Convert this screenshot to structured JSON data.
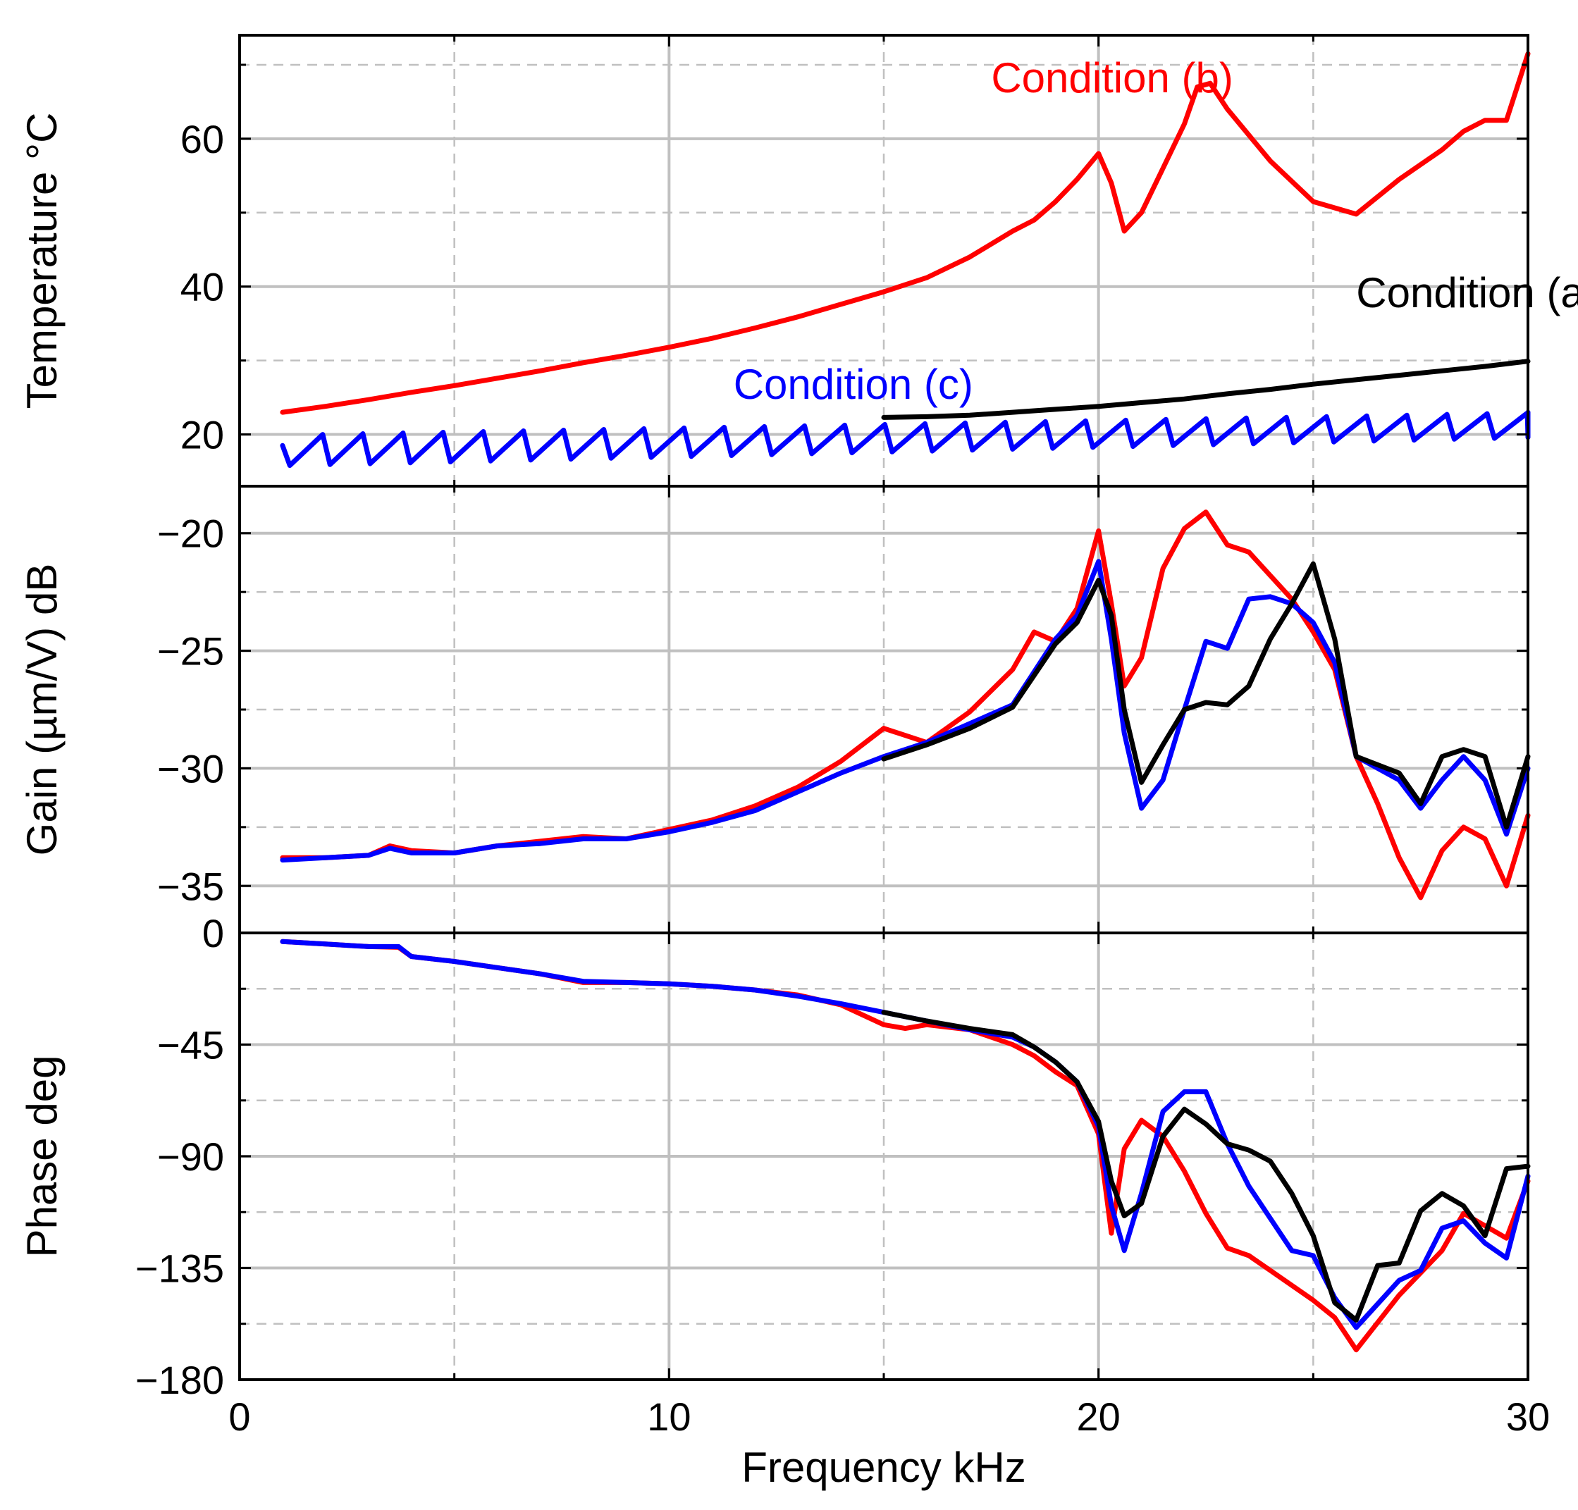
{
  "chart_data": {
    "type": "line",
    "xlabel": "Frequency kHz",
    "xlim": [
      0,
      30
    ],
    "x_ticks": [
      "0",
      "10",
      "20",
      "30"
    ],
    "colors": {
      "condition_a": "#000000",
      "condition_b": "#ff0000",
      "condition_c": "#0000ff"
    },
    "panels": [
      {
        "id": "temperature",
        "ylabel": "Temperature °C",
        "ylim": [
          13,
          74
        ],
        "y_ticks": [
          20,
          40,
          60
        ],
        "y_tick_labels": [
          "20",
          "40",
          "60"
        ],
        "y_minor": [
          30,
          50,
          70
        ],
        "annotations": [
          {
            "text": "Condition (b)",
            "x": 17.5,
            "y": 66.3,
            "series": "condition_b"
          },
          {
            "text": "Condition (a)",
            "x": 26.0,
            "y": 37.2,
            "series": "condition_a"
          },
          {
            "text": "Condition (c)",
            "x": 11.5,
            "y": 24.8,
            "series": "condition_c"
          }
        ],
        "series": [
          {
            "name": "Condition (b)",
            "key": "condition_b",
            "x": [
              1,
              2,
              3,
              4,
              5,
              6,
              7,
              8,
              9,
              10,
              11,
              12,
              13,
              14,
              15,
              16,
              17,
              18,
              18.5,
              19,
              19.5,
              20,
              20.3,
              20.6,
              21,
              21.5,
              22,
              22.3,
              22.6,
              23,
              24,
              25,
              26,
              27,
              28,
              28.5,
              29,
              29.5,
              30
            ],
            "values": [
              23,
              23.8,
              24.7,
              25.7,
              26.6,
              27.6,
              28.6,
              29.7,
              30.7,
              31.8,
              33,
              34.4,
              35.9,
              37.6,
              39.3,
              41.2,
              44,
              47.5,
              49,
              51.5,
              54.5,
              58,
              54,
              47.5,
              50,
              56,
              62,
              67,
              67.5,
              64,
              57,
              51.5,
              49.8,
              54.5,
              58.5,
              61,
              62.5,
              62.5,
              71.5
            ]
          },
          {
            "name": "Condition (a)",
            "key": "condition_a",
            "x": [
              15,
              16,
              17,
              18,
              19,
              20,
              21,
              22,
              23,
              24,
              25,
              26,
              27,
              28,
              29,
              30
            ],
            "values": [
              22.3,
              22.4,
              22.6,
              23,
              23.4,
              23.8,
              24.3,
              24.8,
              25.5,
              26.1,
              26.8,
              27.4,
              28,
              28.6,
              29.2,
              29.9
            ]
          },
          {
            "name": "Condition (c)",
            "key": "condition_c",
            "sawtooth": {
              "start": 1.0,
              "end": 30.0,
              "period": 0.935,
              "low_start": 15.8,
              "low_end": 19.6,
              "high_start": 20.0,
              "high_end": 23.0
            }
          }
        ]
      },
      {
        "id": "gain",
        "ylabel": "Gain (µm/V) dB",
        "ylim": [
          -37,
          -18
        ],
        "y_ticks": [
          -35,
          -30,
          -25,
          -20
        ],
        "y_tick_labels": [
          "−35",
          "−30",
          "−25",
          "−20"
        ],
        "y_minor": [
          -32.5,
          -27.5,
          -22.5
        ],
        "series": [
          {
            "name": "Condition (b)",
            "key": "condition_b",
            "x": [
              1,
              2,
              3,
              3.5,
              4,
              5,
              6,
              7,
              8,
              9,
              10,
              11,
              12,
              13,
              14,
              15,
              15.5,
              16,
              17,
              18,
              18.5,
              19,
              19.5,
              20,
              20.3,
              20.6,
              21,
              21.5,
              22,
              22.5,
              23,
              23.5,
              24,
              24.5,
              25,
              25.5,
              26,
              26.5,
              27,
              27.5,
              28,
              28.5,
              29,
              29.5,
              30
            ],
            "values": [
              -33.8,
              -33.8,
              -33.7,
              -33.3,
              -33.5,
              -33.6,
              -33.3,
              -33.1,
              -32.9,
              -33.0,
              -32.6,
              -32.2,
              -31.6,
              -30.8,
              -29.7,
              -28.3,
              -28.6,
              -28.9,
              -27.6,
              -25.8,
              -24.2,
              -24.6,
              -23.2,
              -19.9,
              -23,
              -26.5,
              -25.3,
              -21.5,
              -19.8,
              -19.1,
              -20.5,
              -20.8,
              -21.8,
              -22.8,
              -24.2,
              -25.8,
              -29.5,
              -31.5,
              -33.8,
              -35.5,
              -33.5,
              -32.5,
              -33.0,
              -35.0,
              -32.0
            ]
          },
          {
            "name": "Condition (c)",
            "key": "condition_c",
            "x": [
              1,
              2,
              3,
              3.5,
              4,
              5,
              6,
              7,
              8,
              9,
              10,
              11,
              12,
              13,
              14,
              15,
              16,
              17,
              18,
              19,
              19.5,
              20,
              20.3,
              20.6,
              21,
              21.5,
              22,
              22.5,
              23,
              23.5,
              24,
              24.5,
              25,
              25.5,
              26,
              27,
              27.5,
              28,
              28.5,
              29,
              29.5,
              30
            ],
            "values": [
              -33.9,
              -33.8,
              -33.7,
              -33.4,
              -33.6,
              -33.6,
              -33.3,
              -33.2,
              -33.0,
              -33.0,
              -32.7,
              -32.3,
              -31.8,
              -31.0,
              -30.2,
              -29.5,
              -28.9,
              -28.1,
              -27.3,
              -24.5,
              -23.5,
              -21.2,
              -24.5,
              -28.5,
              -31.7,
              -30.5,
              -27.5,
              -24.6,
              -24.9,
              -22.8,
              -22.7,
              -23.0,
              -23.8,
              -25.5,
              -29.5,
              -30.5,
              -31.7,
              -30.5,
              -29.5,
              -30.5,
              -32.8,
              -30.0
            ]
          },
          {
            "name": "Condition (a)",
            "key": "condition_a",
            "x": [
              15,
              16,
              17,
              18,
              19,
              19.5,
              20,
              20.3,
              20.6,
              21,
              21.5,
              22,
              22.5,
              23,
              23.5,
              24,
              24.5,
              25,
              25.5,
              26,
              27,
              27.5,
              28,
              28.5,
              29,
              29.5,
              30
            ],
            "values": [
              -29.6,
              -29.0,
              -28.3,
              -27.4,
              -24.7,
              -23.8,
              -22.0,
              -23.5,
              -27.5,
              -30.6,
              -29.0,
              -27.5,
              -27.2,
              -27.3,
              -26.5,
              -24.5,
              -23.0,
              -21.3,
              -24.5,
              -29.5,
              -30.2,
              -31.5,
              -29.5,
              -29.2,
              -29.5,
              -32.5,
              -29.5
            ]
          }
        ]
      },
      {
        "id": "phase",
        "ylabel": "Phase deg",
        "ylim": [
          -180,
          0
        ],
        "y_ticks": [
          -180,
          -135,
          -90,
          -45,
          0
        ],
        "y_tick_labels": [
          "−180",
          "−135",
          "−90",
          "−45",
          "0"
        ],
        "y_minor": [
          -157.5,
          -112.5,
          -67.5,
          -22.5
        ],
        "series": [
          {
            "name": "Condition (b)",
            "key": "condition_b",
            "x": [
              1,
              2,
              3,
              3.7,
              4,
              5,
              6,
              7,
              8,
              9,
              10,
              11,
              12,
              13,
              14,
              15,
              15.5,
              16,
              17,
              18,
              18.5,
              19,
              19.5,
              20,
              20.3,
              20.6,
              21,
              21.5,
              22,
              22.5,
              23,
              23.5,
              24,
              25,
              25.5,
              26,
              26.5,
              27,
              27.5,
              28,
              28.5,
              29,
              29.5,
              30
            ],
            "values": [
              -3.5,
              -4.5,
              -5.5,
              -5.8,
              -9.5,
              -11.5,
              -14,
              -16.5,
              -20,
              -20,
              -20.5,
              -21.5,
              -23,
              -25,
              -29,
              -37,
              -38.5,
              -37,
              -39,
              -45,
              -49.5,
              -56,
              -61.5,
              -81,
              -121,
              -87,
              -75.5,
              -82,
              -96,
              -113,
              -127,
              -130,
              -136,
              -148,
              -155,
              -168,
              -157,
              -146,
              -137,
              -128,
              -113,
              -118,
              -123,
              -100
            ]
          },
          {
            "name": "Condition (c)",
            "key": "condition_c",
            "x": [
              1,
              2,
              3,
              3.7,
              4,
              5,
              6,
              7,
              8,
              9,
              10,
              11,
              12,
              13,
              14,
              15,
              16,
              17,
              18,
              18.5,
              19,
              19.5,
              20,
              20.3,
              20.6,
              21,
              21.5,
              22,
              22.5,
              23,
              23.5,
              24,
              24.5,
              25,
              25.5,
              26,
              27,
              27.5,
              28,
              28.5,
              29,
              29.5,
              30
            ],
            "values": [
              -3.5,
              -4.5,
              -5.5,
              -5.5,
              -9.5,
              -11.5,
              -14,
              -16.5,
              -19.5,
              -20,
              -20.5,
              -21.5,
              -23,
              -25.5,
              -28.5,
              -32,
              -35.5,
              -39,
              -42,
              -46,
              -52,
              -60,
              -78,
              -110,
              -128,
              -105,
              -72,
              -64,
              -64,
              -85,
              -102,
              -115,
              -128,
              -130,
              -147,
              -159,
              -140,
              -136,
              -119,
              -116,
              -125,
              -131,
              -98
            ]
          },
          {
            "name": "Condition (a)",
            "key": "condition_a",
            "x": [
              15,
              16,
              17,
              18,
              18.5,
              19,
              19.5,
              20,
              20.3,
              20.6,
              21,
              21.5,
              22,
              22.5,
              23,
              23.5,
              24,
              24.5,
              25,
              25.5,
              26,
              26.5,
              27,
              27.5,
              28,
              28.5,
              29,
              29.5,
              30
            ],
            "values": [
              -32,
              -35.5,
              -38.5,
              -41,
              -46,
              -52,
              -60,
              -76,
              -100,
              -114,
              -109,
              -82,
              -71,
              -77,
              -85,
              -87.5,
              -92,
              -105,
              -122,
              -149,
              -156,
              -134,
              -133,
              -112,
              -105,
              -110,
              -122,
              -95,
              -94
            ]
          }
        ]
      }
    ]
  }
}
